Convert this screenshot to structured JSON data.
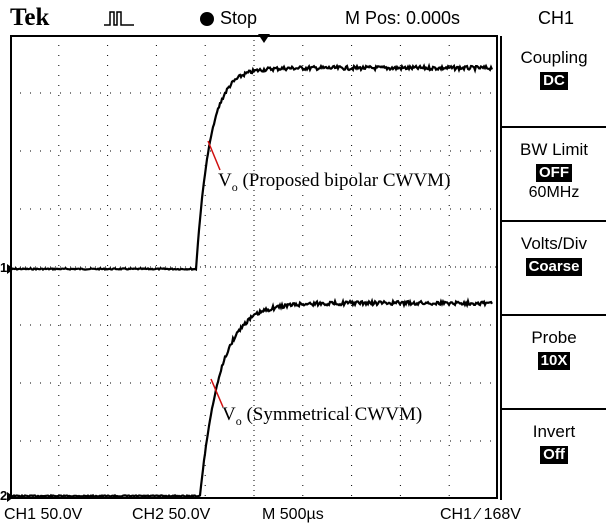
{
  "header": {
    "brand": "Tek",
    "acq_state_icon": "stop-dot-icon",
    "acq_state": "Stop",
    "m_pos": "M Pos: 0.000s",
    "channel": "CH1"
  },
  "menu": [
    {
      "title": "Coupling",
      "value": "DC",
      "sub": ""
    },
    {
      "title": "BW Limit",
      "value": "OFF",
      "sub": "60MHz"
    },
    {
      "title": "Volts/Div",
      "value": "Coarse",
      "sub": ""
    },
    {
      "title": "Probe",
      "value": "10X",
      "sub": ""
    },
    {
      "title": "Invert",
      "value": "Off",
      "sub": ""
    }
  ],
  "markers": {
    "ch1": "1",
    "ch2": "2"
  },
  "annotations": {
    "upper_sym": "V",
    "upper_sub": "o",
    "upper_text": " (Proposed bipolar CWVM)",
    "lower_sym": "V",
    "lower_sub": "o",
    "lower_text": " (Symmetrical CWVM)"
  },
  "footer": {
    "ch1_scale": "CH1   50.0V",
    "ch2_scale": "CH2   50.0V",
    "time_scale": "M 500µs",
    "trigger": "CH1  ∕  168V"
  },
  "colors": {
    "trace": "#000000",
    "annotation_line": "#d01010",
    "grid": "#000000"
  }
}
